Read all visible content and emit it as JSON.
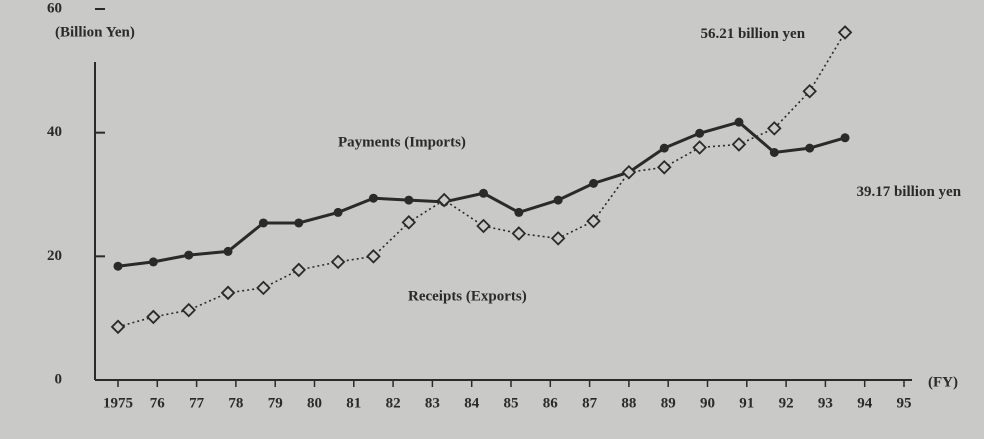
{
  "chart_data": {
    "type": "line",
    "y_axis_label": "(Billion Yen)",
    "x_axis_label": "(FY)",
    "annotations": [
      "56.21 billion yen",
      "39.17 billion yen"
    ],
    "xlim": [
      1975,
      1995
    ],
    "xticks": [
      {
        "value": 1975,
        "label": "1975"
      },
      {
        "value": 1976,
        "label": "76"
      },
      {
        "value": 1977,
        "label": "77"
      },
      {
        "value": 1978,
        "label": "78"
      },
      {
        "value": 1979,
        "label": "79"
      },
      {
        "value": 1980,
        "label": "80"
      },
      {
        "value": 1981,
        "label": "81"
      },
      {
        "value": 1982,
        "label": "82"
      },
      {
        "value": 1983,
        "label": "83"
      },
      {
        "value": 1984,
        "label": "84"
      },
      {
        "value": 1985,
        "label": "85"
      },
      {
        "value": 1986,
        "label": "86"
      },
      {
        "value": 1987,
        "label": "87"
      },
      {
        "value": 1988,
        "label": "88"
      },
      {
        "value": 1989,
        "label": "89"
      },
      {
        "value": 1990,
        "label": "90"
      },
      {
        "value": 1991,
        "label": "91"
      },
      {
        "value": 1992,
        "label": "92"
      },
      {
        "value": 1993,
        "label": "93"
      },
      {
        "value": 1994,
        "label": "94"
      },
      {
        "value": 1995,
        "label": "95"
      }
    ],
    "ylim": [
      0,
      60
    ],
    "yticks": [
      0,
      20,
      40,
      60
    ],
    "x": [
      1975.0,
      1975.9,
      1976.8,
      1977.8,
      1978.7,
      1979.6,
      1980.6,
      1981.5,
      1982.4,
      1983.3,
      1984.3,
      1985.2,
      1986.2,
      1987.1,
      1988.0,
      1988.9,
      1989.8,
      1990.8,
      1991.7,
      1992.6,
      1993.5
    ],
    "series": [
      {
        "name": "Payments (Imports)",
        "color": "#2a2a2a",
        "values": [
          18.4,
          19.1,
          20.2,
          20.8,
          25.4,
          25.4,
          27.1,
          29.4,
          29.1,
          28.8,
          30.2,
          27.1,
          29.1,
          31.8,
          33.6,
          37.5,
          39.9,
          41.7,
          36.8,
          37.5,
          39.17
        ]
      },
      {
        "name": "Receipts (Exports)",
        "color": "#2a2a2a",
        "values": [
          8.6,
          10.2,
          11.3,
          14.1,
          14.9,
          17.8,
          19.1,
          20.0,
          25.5,
          29.1,
          24.9,
          23.7,
          22.9,
          25.7,
          33.6,
          34.4,
          37.6,
          38.1,
          40.7,
          46.7,
          56.21
        ]
      }
    ]
  }
}
